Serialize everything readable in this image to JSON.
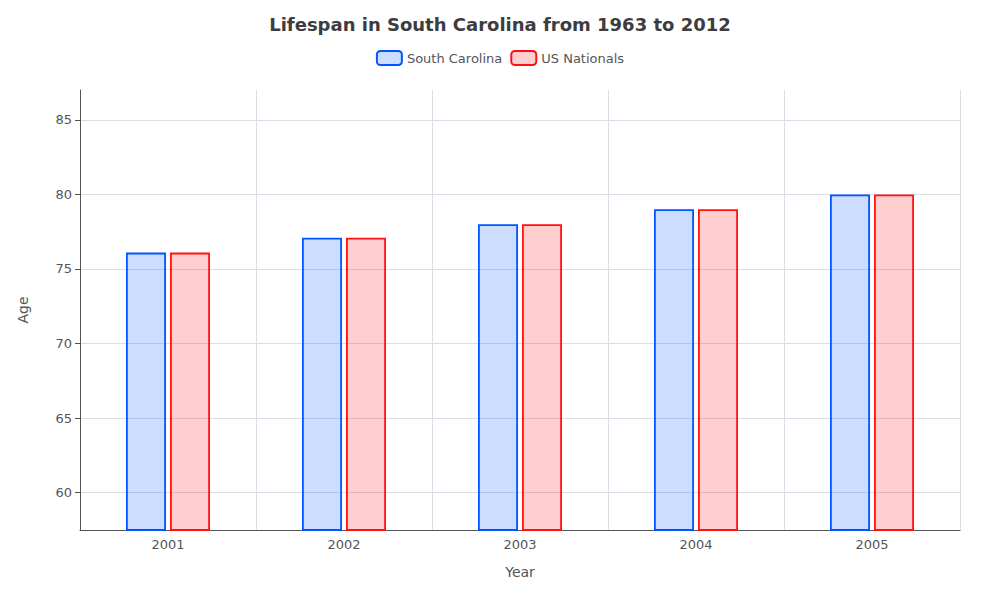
{
  "chart_data": {
    "type": "bar",
    "title": "Lifespan in South Carolina from 1963 to 2012",
    "xlabel": "Year",
    "ylabel": "Age",
    "categories": [
      "2001",
      "2002",
      "2003",
      "2004",
      "2005"
    ],
    "series": [
      {
        "name": "South Carolina",
        "color": "#0055ff",
        "values": [
          76.1,
          77.1,
          78.0,
          79.0,
          80.0
        ]
      },
      {
        "name": "US Nationals",
        "color": "#ff1111",
        "values": [
          76.1,
          77.1,
          78.0,
          79.0,
          80.0
        ]
      }
    ],
    "ylim": [
      57.5,
      87
    ],
    "yticks": [
      60,
      65,
      70,
      75,
      80,
      85
    ],
    "grid": true,
    "legend": "top"
  }
}
